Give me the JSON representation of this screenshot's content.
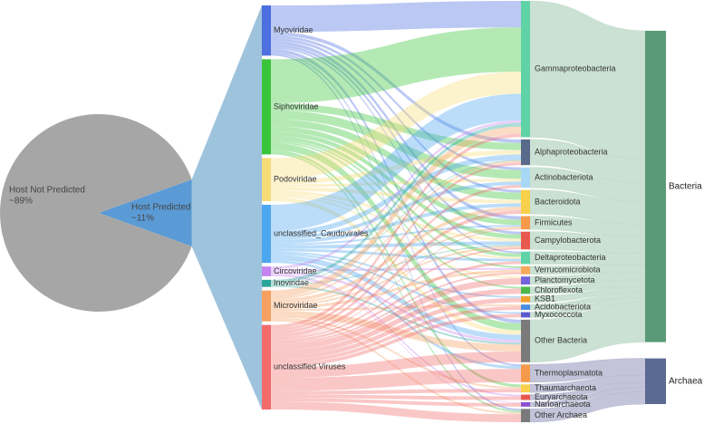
{
  "chart_data": [
    {
      "type": "pie",
      "labels": [
        "Host Not Predicted",
        "Host Predicted"
      ],
      "values": [
        89,
        11
      ],
      "value_labels": [
        "~89%",
        "~11%"
      ],
      "colors": [
        "#a6a6a6",
        "#5b9bd5"
      ]
    },
    {
      "type": "sankey",
      "viruses": [
        {
          "name": "Myoviridae",
          "color": "#4d6fe0"
        },
        {
          "name": "Siphoviridae",
          "color": "#3ac43a"
        },
        {
          "name": "Podoviridae",
          "color": "#f6dc78"
        },
        {
          "name": "unclassified_Caudovirales",
          "color": "#4da6f0"
        },
        {
          "name": "Circoviridae",
          "color": "#c584f0"
        },
        {
          "name": "Inoviridae",
          "color": "#2aa59a"
        },
        {
          "name": "Microviridae",
          "color": "#f5a060"
        },
        {
          "name": "unclassified Viruses",
          "color": "#f26b6b"
        }
      ],
      "hosts": [
        {
          "name": "Gammaproteobacteria",
          "color": "#5fd3a5",
          "domain": "Bacteria"
        },
        {
          "name": "Alphaproteobacteria",
          "color": "#5a6a8c",
          "domain": "Bacteria"
        },
        {
          "name": "Actinobacteriota",
          "color": "#a8d8f5",
          "domain": "Bacteria"
        },
        {
          "name": "Bacteroidota",
          "color": "#f8d04a",
          "domain": "Bacteria"
        },
        {
          "name": "Firmicutes",
          "color": "#f59a4a",
          "domain": "Bacteria"
        },
        {
          "name": "Campylobacterota",
          "color": "#e8584e",
          "domain": "Bacteria"
        },
        {
          "name": "Deltaproteobacteria",
          "color": "#5fd3a5",
          "domain": "Bacteria"
        },
        {
          "name": "Verrucomicrobiota",
          "color": "#f7a85a",
          "domain": "Bacteria"
        },
        {
          "name": "Planctomycetota",
          "color": "#7364dc",
          "domain": "Bacteria"
        },
        {
          "name": "Chloroflexota",
          "color": "#4ab84a",
          "domain": "Bacteria"
        },
        {
          "name": "KSB1",
          "color": "#f0a030",
          "domain": "Bacteria"
        },
        {
          "name": "Acidobacteriota",
          "color": "#4a8ee0",
          "domain": "Bacteria"
        },
        {
          "name": "Myxococcota",
          "color": "#5b5bd0",
          "domain": "Bacteria"
        },
        {
          "name": "Other Bacteria",
          "color": "#7a7a7a",
          "domain": "Bacteria"
        },
        {
          "name": "Thermoplasmatota",
          "color": "#f59a4a",
          "domain": "Archaea"
        },
        {
          "name": "Thaumarchaeota",
          "color": "#f8d04a",
          "domain": "Archaea"
        },
        {
          "name": "Euryarchaeota",
          "color": "#e8584e",
          "domain": "Archaea"
        },
        {
          "name": "Nanoarchaeota",
          "color": "#8a50d0",
          "domain": "Archaea"
        },
        {
          "name": "Other Archaea",
          "color": "#7a7a7a",
          "domain": "Archaea"
        }
      ],
      "domains": [
        {
          "name": "Bacteria",
          "color": "#5a9a78",
          "band": "#c2dccb"
        },
        {
          "name": "Archaea",
          "color": "#5a6a92",
          "band": "#b9b9d2"
        }
      ],
      "links": [
        {
          "source": "Myoviridae",
          "target": "Gammaproteobacteria",
          "value": 30
        },
        {
          "source": "Myoviridae",
          "target": "Alphaproteobacteria",
          "value": 4
        },
        {
          "source": "Myoviridae",
          "target": "Actinobacteriota",
          "value": 3
        },
        {
          "source": "Myoviridae",
          "target": "Bacteroidota",
          "value": 3
        },
        {
          "source": "Myoviridae",
          "target": "Firmicutes",
          "value": 4
        },
        {
          "source": "Myoviridae",
          "target": "Campylobacterota",
          "value": 3
        },
        {
          "source": "Myoviridae",
          "target": "Deltaproteobacteria",
          "value": 2
        },
        {
          "source": "Myoviridae",
          "target": "Other Bacteria",
          "value": 4
        },
        {
          "source": "Myoviridae",
          "target": "Thermoplasmatota",
          "value": 2
        },
        {
          "source": "Myoviridae",
          "target": "Other Archaea",
          "value": 2
        },
        {
          "source": "Siphoviridae",
          "target": "Gammaproteobacteria",
          "value": 50
        },
        {
          "source": "Siphoviridae",
          "target": "Alphaproteobacteria",
          "value": 8
        },
        {
          "source": "Siphoviridae",
          "target": "Actinobacteriota",
          "value": 10
        },
        {
          "source": "Siphoviridae",
          "target": "Bacteroidota",
          "value": 8
        },
        {
          "source": "Siphoviridae",
          "target": "Firmicutes",
          "value": 6
        },
        {
          "source": "Siphoviridae",
          "target": "Campylobacterota",
          "value": 5
        },
        {
          "source": "Siphoviridae",
          "target": "Deltaproteobacteria",
          "value": 4
        },
        {
          "source": "Siphoviridae",
          "target": "Verrucomicrobiota",
          "value": 2
        },
        {
          "source": "Siphoviridae",
          "target": "Chloroflexota",
          "value": 2
        },
        {
          "source": "Siphoviridae",
          "target": "Other Bacteria",
          "value": 8
        },
        {
          "source": "Siphoviridae",
          "target": "Thaumarchaeota",
          "value": 3
        },
        {
          "source": "Siphoviridae",
          "target": "Other Archaea",
          "value": 2
        },
        {
          "source": "Podoviridae",
          "target": "Gammaproteobacteria",
          "value": 25
        },
        {
          "source": "Podoviridae",
          "target": "Alphaproteobacteria",
          "value": 5
        },
        {
          "source": "Podoviridae",
          "target": "Actinobacteriota",
          "value": 3
        },
        {
          "source": "Podoviridae",
          "target": "Bacteroidota",
          "value": 4
        },
        {
          "source": "Podoviridae",
          "target": "Campylobacterota",
          "value": 3
        },
        {
          "source": "Podoviridae",
          "target": "Deltaproteobacteria",
          "value": 2
        },
        {
          "source": "Podoviridae",
          "target": "Planctomycetota",
          "value": 2
        },
        {
          "source": "Podoviridae",
          "target": "Other Bacteria",
          "value": 5
        },
        {
          "source": "unclassified_Caudovirales",
          "target": "Gammaproteobacteria",
          "value": 30
        },
        {
          "source": "unclassified_Caudovirales",
          "target": "Alphaproteobacteria",
          "value": 6
        },
        {
          "source": "unclassified_Caudovirales",
          "target": "Actinobacteriota",
          "value": 4
        },
        {
          "source": "unclassified_Caudovirales",
          "target": "Bacteroidota",
          "value": 4
        },
        {
          "source": "unclassified_Caudovirales",
          "target": "Firmicutes",
          "value": 2
        },
        {
          "source": "unclassified_Caudovirales",
          "target": "Campylobacterota",
          "value": 4
        },
        {
          "source": "unclassified_Caudovirales",
          "target": "Deltaproteobacteria",
          "value": 3
        },
        {
          "source": "unclassified_Caudovirales",
          "target": "KSB1",
          "value": 2
        },
        {
          "source": "unclassified_Caudovirales",
          "target": "Myxococcota",
          "value": 2
        },
        {
          "source": "unclassified_Caudovirales",
          "target": "Other Bacteria",
          "value": 6
        },
        {
          "source": "unclassified_Caudovirales",
          "target": "Thermoplasmatota",
          "value": 3
        },
        {
          "source": "Circoviridae",
          "target": "Gammaproteobacteria",
          "value": 3
        },
        {
          "source": "Circoviridae",
          "target": "Verrucomicrobiota",
          "value": 2
        },
        {
          "source": "Circoviridae",
          "target": "Other Bacteria",
          "value": 3
        },
        {
          "source": "Circoviridae",
          "target": "Euryarchaeota",
          "value": 2
        },
        {
          "source": "Circoviridae",
          "target": "Nanoarchaeota",
          "value": 1
        },
        {
          "source": "Inoviridae",
          "target": "Gammaproteobacteria",
          "value": 4
        },
        {
          "source": "Inoviridae",
          "target": "Alphaproteobacteria",
          "value": 1
        },
        {
          "source": "Inoviridae",
          "target": "Campylobacterota",
          "value": 1
        },
        {
          "source": "Inoviridae",
          "target": "Other Bacteria",
          "value": 2
        },
        {
          "source": "Microviridae",
          "target": "Gammaproteobacteria",
          "value": 8
        },
        {
          "source": "Microviridae",
          "target": "Alphaproteobacteria",
          "value": 2
        },
        {
          "source": "Microviridae",
          "target": "Bacteroidota",
          "value": 4
        },
        {
          "source": "Microviridae",
          "target": "Firmicutes",
          "value": 2
        },
        {
          "source": "Microviridae",
          "target": "Campylobacterota",
          "value": 2
        },
        {
          "source": "Microviridae",
          "target": "Verrucomicrobiota",
          "value": 3
        },
        {
          "source": "Microviridae",
          "target": "Acidobacteriota",
          "value": 2
        },
        {
          "source": "Microviridae",
          "target": "Other Bacteria",
          "value": 8
        },
        {
          "source": "Microviridae",
          "target": "Thaumarchaeota",
          "value": 2
        },
        {
          "source": "Microviridae",
          "target": "Other Archaea",
          "value": 2
        },
        {
          "source": "unclassified Viruses",
          "target": "Gammaproteobacteria",
          "value": 4
        },
        {
          "source": "unclassified Viruses",
          "target": "Alphaproteobacteria",
          "value": 3
        },
        {
          "source": "unclassified Viruses",
          "target": "Actinobacteriota",
          "value": 3
        },
        {
          "source": "unclassified Viruses",
          "target": "Bacteroidota",
          "value": 4
        },
        {
          "source": "unclassified Viruses",
          "target": "Firmicutes",
          "value": 1
        },
        {
          "source": "unclassified Viruses",
          "target": "Campylobacterota",
          "value": 2
        },
        {
          "source": "unclassified Viruses",
          "target": "Deltaproteobacteria",
          "value": 3
        },
        {
          "source": "unclassified Viruses",
          "target": "Verrucomicrobiota",
          "value": 2
        },
        {
          "source": "unclassified Viruses",
          "target": "Planctomycetota",
          "value": 7
        },
        {
          "source": "unclassified Viruses",
          "target": "Chloroflexota",
          "value": 6
        },
        {
          "source": "unclassified Viruses",
          "target": "KSB1",
          "value": 5
        },
        {
          "source": "unclassified Viruses",
          "target": "Acidobacteriota",
          "value": 4
        },
        {
          "source": "unclassified Viruses",
          "target": "Myxococcota",
          "value": 4
        },
        {
          "source": "unclassified Viruses",
          "target": "Other Bacteria",
          "value": 12
        },
        {
          "source": "unclassified Viruses",
          "target": "Thermoplasmatota",
          "value": 15
        },
        {
          "source": "unclassified Viruses",
          "target": "Thaumarchaeota",
          "value": 4
        },
        {
          "source": "unclassified Viruses",
          "target": "Euryarchaeota",
          "value": 4
        },
        {
          "source": "unclassified Viruses",
          "target": "Nanoarchaeota",
          "value": 4
        },
        {
          "source": "unclassified Viruses",
          "target": "Other Archaea",
          "value": 9
        }
      ]
    }
  ]
}
